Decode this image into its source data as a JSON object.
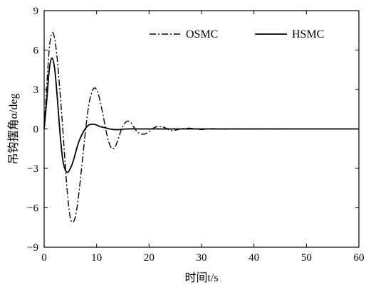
{
  "chart_data": {
    "type": "line",
    "xlabel": "时间t/s",
    "ylabel": "吊钩摆角α/deg",
    "xlim": [
      0,
      60
    ],
    "ylim": [
      -9,
      9
    ],
    "xticks": [
      "0",
      "10",
      "20",
      "30",
      "40",
      "50",
      "60"
    ],
    "yticks": [
      "−9",
      "−6",
      "−3",
      "0",
      "3",
      "6",
      "9"
    ],
    "legend_position": "top-right",
    "grid": false,
    "series": [
      {
        "name": "OSMC",
        "style": "dash-dot",
        "color": "#000000",
        "x": [
          0,
          0.5,
          1.0,
          1.5,
          2.0,
          2.5,
          3.0,
          3.5,
          4.0,
          4.5,
          5.0,
          5.5,
          6.0,
          6.5,
          7.0,
          7.5,
          8.0,
          8.5,
          9.0,
          9.5,
          10.0,
          10.5,
          11.0,
          11.5,
          12.0,
          12.5,
          13.0,
          13.5,
          14.0,
          14.5,
          15.0,
          15.5,
          16.0,
          16.5,
          17.0,
          17.5,
          18.0,
          19.0,
          20.0,
          21.0,
          22.0,
          23.0,
          24.0,
          25.0,
          26.0,
          27.0,
          28.0,
          29.0,
          30.0,
          31.0,
          32.0,
          33.0,
          34.0,
          35.0,
          36.0,
          37.0,
          38.0,
          39.0,
          40.0,
          41.0,
          42.0,
          43.0,
          44.0,
          45.0,
          46.0
        ],
        "values": [
          0,
          3.3,
          6.2,
          7.3,
          6.9,
          5.3,
          2.9,
          0.3,
          -2.6,
          -5.2,
          -6.8,
          -7.1,
          -6.6,
          -5.3,
          -3.5,
          -1.6,
          0.3,
          1.8,
          2.7,
          3.1,
          3.0,
          2.4,
          1.5,
          0.5,
          -0.5,
          -1.2,
          -1.5,
          -1.4,
          -0.9,
          -0.3,
          0.2,
          0.5,
          0.6,
          0.5,
          0.2,
          -0.1,
          -0.3,
          -0.4,
          -0.2,
          0.1,
          0.2,
          0.1,
          -0.1,
          -0.1,
          0,
          0.05,
          0.05,
          0,
          -0.05,
          0,
          0.02,
          0,
          -0.02,
          0,
          0.01,
          0,
          0,
          0,
          0,
          0,
          0,
          0,
          0,
          0,
          0
        ]
      },
      {
        "name": "HSMC",
        "style": "solid",
        "color": "#000000",
        "x": [
          0,
          0.5,
          1.0,
          1.5,
          2.0,
          2.5,
          3.0,
          3.5,
          4.0,
          4.5,
          5.0,
          5.5,
          6.0,
          6.5,
          7.0,
          7.5,
          8.0,
          8.5,
          9.0,
          9.5,
          10.0,
          10.5,
          11.0,
          11.5,
          12.0,
          12.5,
          13.0,
          13.5,
          14.0,
          14.5,
          15.0,
          16.0,
          17.0,
          18.0,
          20.0,
          25.0,
          30.0,
          40.0,
          50.0,
          60.0
        ],
        "values": [
          0,
          2.2,
          4.6,
          5.4,
          4.6,
          2.4,
          -0.2,
          -2.2,
          -3.1,
          -3.3,
          -3.0,
          -2.5,
          -1.8,
          -1.1,
          -0.6,
          -0.2,
          0.1,
          0.3,
          0.35,
          0.35,
          0.3,
          0.2,
          0.15,
          0.1,
          0.05,
          0,
          -0.03,
          -0.05,
          -0.05,
          -0.04,
          -0.02,
          0,
          0.01,
          0,
          0,
          0,
          0,
          0,
          0,
          0
        ]
      }
    ]
  }
}
